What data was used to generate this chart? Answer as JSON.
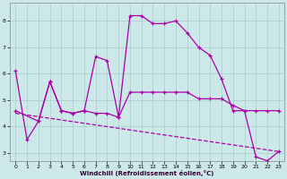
{
  "xlabel": "Windchill (Refroidissement éolien,°C)",
  "bg_color": "#cce8e8",
  "line_color": "#aa00aa",
  "grid_color": "#aacccc",
  "ylim": [
    2.7,
    8.7
  ],
  "xlim": [
    -0.5,
    23.5
  ],
  "curve1_x": [
    0,
    1,
    2,
    3,
    4,
    5,
    6,
    7,
    8,
    9,
    10,
    11,
    12,
    13,
    14,
    15,
    16,
    17,
    18,
    19,
    20,
    21,
    22,
    23
  ],
  "curve1_y": [
    6.1,
    3.5,
    4.2,
    5.7,
    4.6,
    4.5,
    4.6,
    6.65,
    6.5,
    4.35,
    8.2,
    8.2,
    7.9,
    7.9,
    8.0,
    7.55,
    7.0,
    6.7,
    5.8,
    4.6,
    4.6,
    2.85,
    2.7,
    3.05
  ],
  "curve2_x": [
    0,
    2,
    3,
    4,
    5,
    6,
    7,
    8,
    9,
    10,
    11,
    12,
    13,
    14,
    15,
    16,
    17,
    18,
    19,
    20,
    21,
    22,
    23
  ],
  "curve2_y": [
    4.6,
    4.2,
    5.7,
    4.6,
    4.5,
    4.6,
    4.5,
    4.5,
    4.35,
    5.3,
    5.3,
    5.3,
    5.3,
    5.3,
    5.3,
    5.05,
    5.05,
    5.05,
    4.8,
    4.6,
    4.6,
    4.6,
    4.6
  ],
  "curve3_x": [
    0,
    23
  ],
  "curve3_y": [
    4.5,
    3.05
  ],
  "yticks": [
    3,
    4,
    5,
    6,
    7,
    8
  ],
  "xticks": [
    0,
    1,
    2,
    3,
    4,
    5,
    6,
    7,
    8,
    9,
    10,
    11,
    12,
    13,
    14,
    15,
    16,
    17,
    18,
    19,
    20,
    21,
    22,
    23
  ]
}
